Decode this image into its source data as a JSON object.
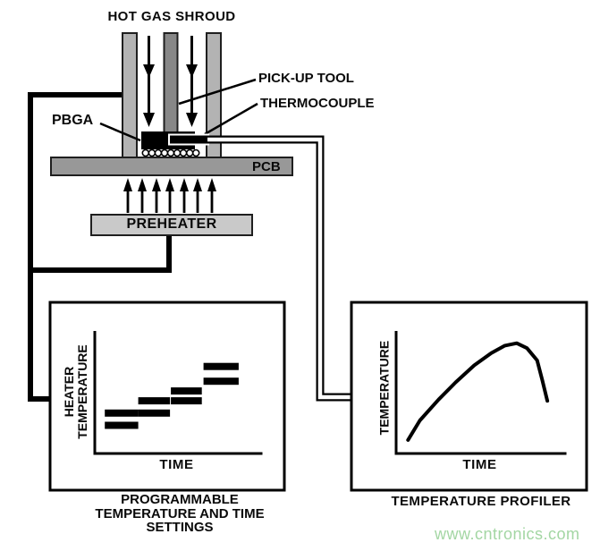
{
  "diagram": {
    "title": "HOT GAS SHROUD",
    "pbga": "PBGA",
    "pickup_tool": "PICK-UP TOOL",
    "thermocouple": "THERMOCOUPLE",
    "pcb": "PCB",
    "preheater": "PREHEATER"
  },
  "left_chart": {
    "ylabel_line1": "HEATER",
    "ylabel_line2": "TEMPERATURE",
    "xlabel": "TIME",
    "caption": [
      "PROGRAMMABLE",
      "TEMPERATURE AND TIME",
      "SETTINGS"
    ]
  },
  "right_chart": {
    "ylabel": "TEMPERATURE",
    "xlabel": "TIME",
    "caption": "TEMPERATURE PROFILER"
  },
  "watermark": {
    "text": "www.cntronics.com",
    "color": "#a3d6a3"
  },
  "colors": {
    "shroud_wall": "#b3b3b3",
    "pickup_tool": "#878787",
    "pcb": "#989898",
    "preheater": "#c9c9c9",
    "ink": "#000000",
    "border": "#1f1f1f"
  },
  "chart_data": [
    {
      "type": "bar",
      "title": "PROGRAMMABLE TEMPERATURE AND TIME SETTINGS",
      "xlabel": "TIME",
      "ylabel": "HEATER TEMPERATURE",
      "axes": "qualitative, no numeric ticks",
      "legend": "none",
      "steps": [
        {
          "x0": 0.06,
          "x1": 0.26,
          "levels": [
            0.33,
            0.23
          ]
        },
        {
          "x0": 0.26,
          "x1": 0.45,
          "levels": [
            0.43,
            0.33
          ]
        },
        {
          "x0": 0.455,
          "x1": 0.64,
          "levels": [
            0.51,
            0.43
          ]
        },
        {
          "x0": 0.65,
          "x1": 0.86,
          "levels": [
            0.71,
            0.59
          ]
        }
      ]
    },
    {
      "type": "line",
      "title": "TEMPERATURE PROFILER",
      "xlabel": "TIME",
      "ylabel": "TEMPERATURE",
      "axes": "qualitative, no numeric ticks",
      "legend": "none",
      "points": [
        [
          0.07,
          0.11
        ],
        [
          0.14,
          0.27
        ],
        [
          0.25,
          0.44
        ],
        [
          0.35,
          0.58
        ],
        [
          0.46,
          0.72
        ],
        [
          0.56,
          0.82
        ],
        [
          0.64,
          0.88
        ],
        [
          0.71,
          0.9
        ],
        [
          0.77,
          0.86
        ],
        [
          0.83,
          0.76
        ],
        [
          0.86,
          0.6
        ],
        [
          0.89,
          0.43
        ]
      ]
    }
  ]
}
